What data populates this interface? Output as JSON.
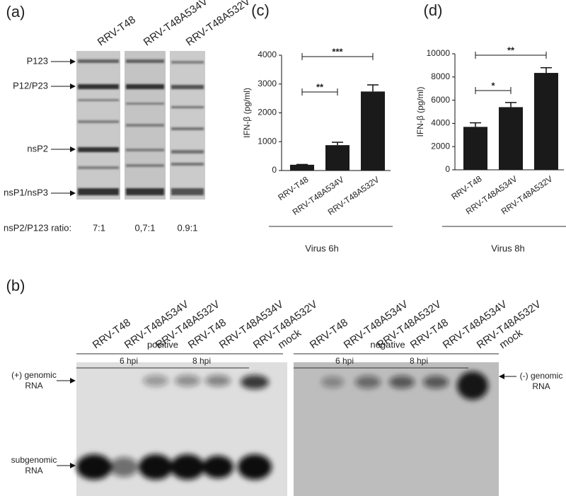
{
  "panel_labels": [
    "(a)",
    "(b)",
    "(c)",
    "(d)"
  ],
  "gel_a": {
    "lanes": [
      "RRV-T48",
      "RRV-T48A534V",
      "RRV-T48A532V"
    ],
    "bands": [
      "P123",
      "P12/P23",
      "nsP2",
      "nsP1/nsP3"
    ],
    "ratio_label": "nsP2/P123 ratio:",
    "ratios": [
      "7:1",
      "0,7:1",
      "0.9:1"
    ]
  },
  "gel_b": {
    "lanes": [
      "RRV-T48",
      "RRV-T48A534V",
      "RRV-T48A532V",
      "RRV-T48",
      "RRV-T48A534V",
      "RRV-T48A532V",
      "mock"
    ],
    "strands": [
      "positive",
      "negative"
    ],
    "timepoints": [
      "6 hpi",
      "8 hpi"
    ],
    "left_labels": [
      [
        "(+) genomic",
        "RNA"
      ],
      [
        "subgenomic",
        "RNA"
      ]
    ],
    "right_label": [
      "(-) genomic",
      "RNA"
    ]
  },
  "chart_data": [
    {
      "type": "bar",
      "ylabel": "IFN-β (pg/ml)",
      "xlabel": "Virus 6h",
      "categories": [
        "RRV-T48",
        "RRV-T48A534V",
        "RRV-T48A532V"
      ],
      "values": [
        200,
        880,
        2740
      ],
      "errors": [
        10,
        100,
        230
      ],
      "color": "#1a1a1a",
      "ylim": [
        0,
        4000
      ],
      "yticks": [
        0,
        1000,
        2000,
        3000,
        4000
      ],
      "annotations": [
        {
          "text": "**",
          "from": 0,
          "to": 1
        },
        {
          "text": "***",
          "from": 0,
          "to": 2
        }
      ]
    },
    {
      "type": "bar",
      "ylabel": "IFN-β (pg/ml)",
      "xlabel": "Virus 8h",
      "categories": [
        "RRV-T48",
        "RRV-T48A534V",
        "RRV-T48A532V"
      ],
      "values": [
        3700,
        5400,
        8350
      ],
      "errors": [
        350,
        400,
        450
      ],
      "color": "#1a1a1a",
      "ylim": [
        0,
        10000
      ],
      "yticks": [
        0,
        2000,
        4000,
        6000,
        8000,
        10000
      ],
      "annotations": [
        {
          "text": "*",
          "from": 0,
          "to": 1
        },
        {
          "text": "**",
          "from": 0,
          "to": 2
        }
      ]
    }
  ]
}
